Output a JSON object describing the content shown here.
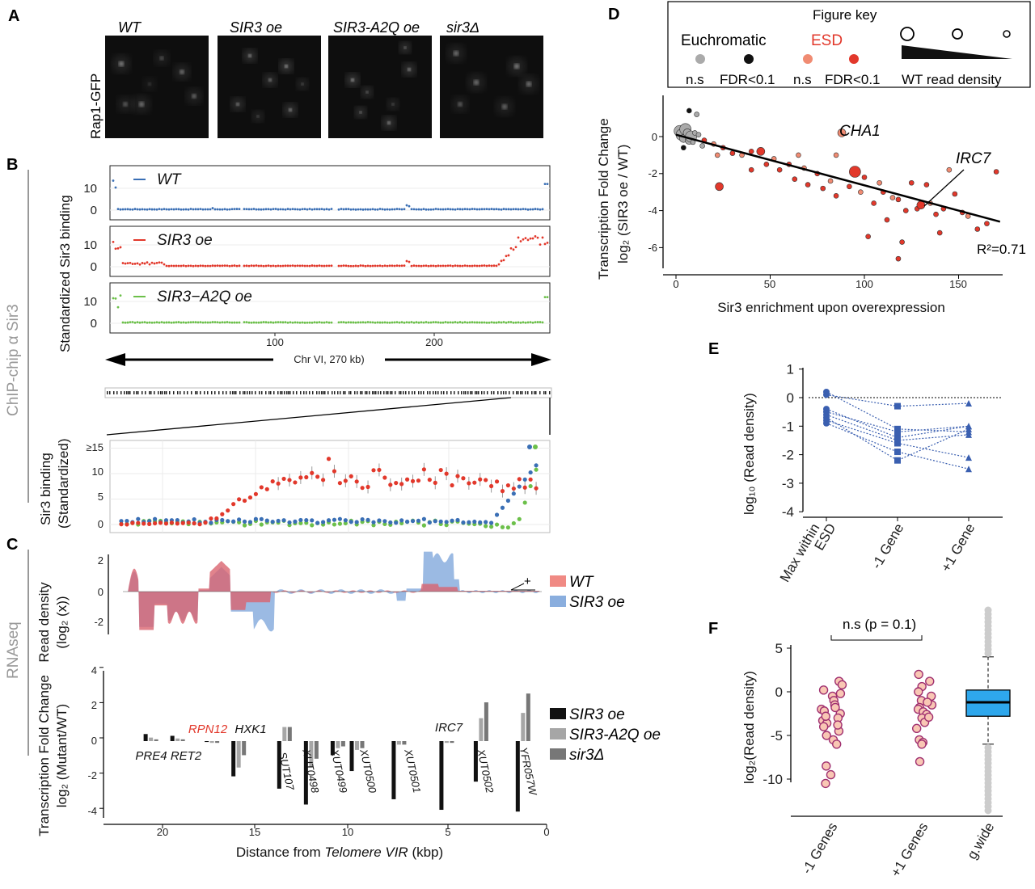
{
  "panels": {
    "A": {
      "label": "A",
      "ylabel": "Rap1-GFP",
      "strains": [
        "WT",
        "SIR3 oe",
        "SIR3-A2Q oe",
        "sir3Δ"
      ]
    },
    "B": {
      "label": "B",
      "side_label": "ChIP-chip  α Sir3",
      "ylabel": "Standardized Sir3 binding",
      "tracks": [
        "WT",
        "SIR3 oe",
        "SIR3−A2Q oe"
      ],
      "xticks": [
        "100",
        "200"
      ],
      "chr_label": "Chr VI, 270 kb)",
      "zoom_ylabel": [
        "Sir3 binding",
        "(Standardized)"
      ],
      "zoom_yticks": [
        "≥15",
        "10",
        "5",
        "0"
      ]
    },
    "C": {
      "label": "C",
      "side_label": "RNAseq",
      "density_ylabel": [
        "Read density",
        "(log₂ (x))"
      ],
      "density_yticks": [
        "2",
        "0",
        "-2"
      ],
      "density_legend": [
        "WT",
        "SIR3 oe"
      ],
      "plus_mark": "+",
      "fc_ylabel": [
        "Transcription Fold Change",
        "log₂ (Mutant/WT)"
      ],
      "fc_yticks": [
        "4",
        "2",
        "0",
        "-2",
        "-4"
      ],
      "fc_legend": [
        "SIR3 oe",
        "SIR3-A2Q oe",
        "sir3Δ"
      ],
      "xticks": [
        "20",
        "15",
        "10",
        "5",
        "0"
      ],
      "xlabel_prefix": "Distance from ",
      "xlabel_italic": "Telomere VIR",
      "xlabel_suffix": " (kbp)",
      "gene_labels": [
        "PRE4",
        "RET2",
        "RPN12",
        "HXK1",
        "SUT107",
        "XUT0498",
        "XUT0499",
        "XUT0500",
        "XUT0501",
        "IRC7",
        "XUT0502",
        "YFR057W"
      ]
    },
    "D": {
      "label": "D",
      "key_title": "Figure key",
      "key_euchromatic": "Euchromatic",
      "key_esd": "ESD",
      "key_ns": "n.s",
      "key_fdr": "FDR<0.1",
      "key_density": "WT read density",
      "ylabel_top": "Transcription Fold Change",
      "ylabel_bottom": "log₂ (SIR3 oe / WT)",
      "xlabel": "Sir3 enrichment upon overexpression",
      "xticks": [
        "0",
        "50",
        "100",
        "150"
      ],
      "yticks": [
        "0",
        "-2",
        "-4",
        "-6"
      ],
      "annot_cha1": "CHA1",
      "annot_irc7": "IRC7",
      "r2": "R²=0.71"
    },
    "E": {
      "label": "E",
      "ylabel": "log₁₀ (Read density)",
      "yticks": [
        "1",
        "0",
        "-1",
        "-2",
        "-3",
        "-4"
      ],
      "xticks": [
        "Max within ESD",
        "-1 Gene",
        "+1 Gene"
      ]
    },
    "F": {
      "label": "F",
      "ylabel": "log₂(Read density)",
      "yticks": [
        "5",
        "0",
        "-5",
        "-10"
      ],
      "xticks": [
        "-1 Genes",
        "+1 Genes",
        "g.wide"
      ],
      "sig_label": "n.s (p = 0.1)"
    }
  },
  "colors": {
    "wt_blue": "#3a6fb5",
    "oe_red": "#e2382b",
    "a2q_green": "#6cc04a",
    "esd_red": "#e2382b",
    "esd_light": "#f08b72",
    "euch_grey": "#aaaaaa",
    "density_wt": "#d9646f",
    "density_oe": "#8aaede",
    "box_blue": "#2ea7ec"
  },
  "chart_data": [
    {
      "panel": "C-bottom",
      "type": "bar",
      "xlabel": "Distance from Telomere VIR (kbp)",
      "ylabel": "Transcription Fold Change log2 (Mutant/WT)",
      "ylim": [
        -4,
        4
      ],
      "categories": [
        "PRE4",
        "RET2",
        "RPN12",
        "HXK1",
        "SUT107",
        "XUT0498",
        "XUT0499",
        "XUT0500",
        "XUT0501",
        "IRC7",
        "XUT0502",
        "YFR057W"
      ],
      "x": [
        20.8,
        19.4,
        17.6,
        16.2,
        13.8,
        12.4,
        11.0,
        10.0,
        7.8,
        5.3,
        3.5,
        1.3
      ],
      "series": [
        {
          "name": "SIR3 oe",
          "values": [
            0.4,
            0.3,
            -0.05,
            -2.0,
            -2.7,
            -3.6,
            -0.8,
            -1.7,
            -3.3,
            -3.9,
            -2.3,
            -4.0
          ]
        },
        {
          "name": "SIR3-A2Q oe",
          "values": [
            0.2,
            0.15,
            -0.1,
            -1.5,
            0.8,
            -1.5,
            -0.4,
            -0.5,
            -0.2,
            -0.1,
            1.3,
            1.6
          ]
        },
        {
          "name": "sir3Δ",
          "values": [
            0.1,
            0.1,
            -0.1,
            -0.8,
            0.8,
            -1.0,
            -0.3,
            -0.4,
            -0.2,
            -0.1,
            2.2,
            2.7
          ]
        }
      ]
    },
    {
      "panel": "D",
      "type": "scatter",
      "xlabel": "Sir3 enrichment upon overexpression",
      "ylabel": "Transcription Fold Change log2 (SIR3 oe / WT)",
      "xlim": [
        -5,
        180
      ],
      "ylim": [
        -7,
        2
      ],
      "fit_line": {
        "x": [
          0,
          172
        ],
        "y": [
          0.1,
          -4.6
        ]
      },
      "r2": 0.71,
      "points": [
        {
          "x": 2,
          "y": 0.3,
          "group": "euch_ns",
          "size": 3
        },
        {
          "x": 3,
          "y": 0.1,
          "group": "euch_ns",
          "size": 3
        },
        {
          "x": 4,
          "y": -0.1,
          "group": "euch_ns",
          "size": 2
        },
        {
          "x": 5,
          "y": 0.4,
          "group": "euch_ns",
          "size": 3
        },
        {
          "x": 6,
          "y": 0.2,
          "group": "euch_ns",
          "size": 2
        },
        {
          "x": 7,
          "y": -0.2,
          "group": "euch_ns",
          "size": 2
        },
        {
          "x": 8,
          "y": 0.0,
          "group": "euch_ns",
          "size": 3
        },
        {
          "x": 9,
          "y": -0.3,
          "group": "euch_ns",
          "size": 1
        },
        {
          "x": 10,
          "y": 0.2,
          "group": "euch_ns",
          "size": 1
        },
        {
          "x": 12,
          "y": 0.1,
          "group": "euch_ns",
          "size": 1
        },
        {
          "x": 14,
          "y": -0.5,
          "group": "euch_ns",
          "size": 1
        },
        {
          "x": 11,
          "y": 1.2,
          "group": "euch_ns",
          "size": 1
        },
        {
          "x": 4,
          "y": -0.6,
          "group": "euch_fdr",
          "size": 1
        },
        {
          "x": 7,
          "y": 1.4,
          "group": "euch_fdr",
          "size": 1
        },
        {
          "x": 15,
          "y": -0.2,
          "group": "esd_fdr",
          "size": 1
        },
        {
          "x": 20,
          "y": -0.4,
          "group": "esd_ns",
          "size": 1
        },
        {
          "x": 22,
          "y": -1.0,
          "group": "esd_ns",
          "size": 1
        },
        {
          "x": 25,
          "y": -0.6,
          "group": "esd_fdr",
          "size": 1
        },
        {
          "x": 23,
          "y": -2.7,
          "group": "esd_fdr",
          "size": 2
        },
        {
          "x": 30,
          "y": -0.9,
          "group": "esd_fdr",
          "size": 1
        },
        {
          "x": 35,
          "y": -1.0,
          "group": "esd_ns",
          "size": 1
        },
        {
          "x": 40,
          "y": -0.8,
          "group": "esd_fdr",
          "size": 1
        },
        {
          "x": 45,
          "y": -0.8,
          "group": "esd_fdr",
          "size": 2
        },
        {
          "x": 48,
          "y": -1.5,
          "group": "esd_fdr",
          "size": 1
        },
        {
          "x": 52,
          "y": -1.2,
          "group": "esd_ns",
          "size": 1
        },
        {
          "x": 55,
          "y": -1.8,
          "group": "esd_fdr",
          "size": 1
        },
        {
          "x": 60,
          "y": -1.5,
          "group": "esd_fdr",
          "size": 1
        },
        {
          "x": 63,
          "y": -2.3,
          "group": "esd_fdr",
          "size": 1
        },
        {
          "x": 68,
          "y": -1.7,
          "group": "esd_ns",
          "size": 1
        },
        {
          "x": 70,
          "y": -2.6,
          "group": "esd_fdr",
          "size": 1
        },
        {
          "x": 75,
          "y": -2.0,
          "group": "esd_fdr",
          "size": 1
        },
        {
          "x": 78,
          "y": -2.8,
          "group": "esd_fdr",
          "size": 1
        },
        {
          "x": 82,
          "y": -2.4,
          "group": "esd_ns",
          "size": 1
        },
        {
          "x": 85,
          "y": -3.2,
          "group": "esd_fdr",
          "size": 1
        },
        {
          "x": 88,
          "y": 0.2,
          "group": "esd_ns",
          "size": 2
        },
        {
          "x": 92,
          "y": -2.7,
          "group": "esd_fdr",
          "size": 1
        },
        {
          "x": 95,
          "y": -1.9,
          "group": "esd_fdr",
          "size": 3
        },
        {
          "x": 98,
          "y": -3.0,
          "group": "esd_ns",
          "size": 1
        },
        {
          "x": 100,
          "y": -2.2,
          "group": "esd_fdr",
          "size": 1
        },
        {
          "x": 105,
          "y": -3.6,
          "group": "esd_fdr",
          "size": 1
        },
        {
          "x": 108,
          "y": -2.5,
          "group": "esd_ns",
          "size": 1
        },
        {
          "x": 110,
          "y": -3.0,
          "group": "esd_fdr",
          "size": 1
        },
        {
          "x": 112,
          "y": -4.5,
          "group": "esd_fdr",
          "size": 1
        },
        {
          "x": 115,
          "y": -3.3,
          "group": "esd_ns",
          "size": 1
        },
        {
          "x": 118,
          "y": -3.4,
          "group": "esd_fdr",
          "size": 1
        },
        {
          "x": 120,
          "y": -5.7,
          "group": "esd_fdr",
          "size": 1
        },
        {
          "x": 122,
          "y": -4.0,
          "group": "esd_fdr",
          "size": 1
        },
        {
          "x": 125,
          "y": -2.5,
          "group": "esd_fdr",
          "size": 1
        },
        {
          "x": 128,
          "y": -3.9,
          "group": "esd_fdr",
          "size": 1
        },
        {
          "x": 130,
          "y": -3.7,
          "group": "esd_fdr",
          "size": 2
        },
        {
          "x": 133,
          "y": -2.6,
          "group": "esd_fdr",
          "size": 1
        },
        {
          "x": 135,
          "y": -3.6,
          "group": "esd_ns",
          "size": 1
        },
        {
          "x": 138,
          "y": -4.2,
          "group": "esd_fdr",
          "size": 1
        },
        {
          "x": 142,
          "y": -3.9,
          "group": "esd_fdr",
          "size": 1
        },
        {
          "x": 148,
          "y": -3.1,
          "group": "esd_fdr",
          "size": 1
        },
        {
          "x": 152,
          "y": -4.1,
          "group": "esd_fdr",
          "size": 1
        },
        {
          "x": 155,
          "y": -4.3,
          "group": "esd_ns",
          "size": 1
        },
        {
          "x": 160,
          "y": -5.0,
          "group": "esd_fdr",
          "size": 1
        },
        {
          "x": 165,
          "y": -4.7,
          "group": "esd_fdr",
          "size": 1
        },
        {
          "x": 170,
          "y": -1.9,
          "group": "esd_fdr",
          "size": 1
        },
        {
          "x": 140,
          "y": -5.2,
          "group": "esd_fdr",
          "size": 1
        },
        {
          "x": 118,
          "y": -6.6,
          "group": "esd_fdr",
          "size": 1
        },
        {
          "x": 102,
          "y": -5.4,
          "group": "esd_fdr",
          "size": 1
        },
        {
          "x": 85,
          "y": -1.0,
          "group": "esd_ns",
          "size": 1
        },
        {
          "x": 65,
          "y": -1.0,
          "group": "esd_ns",
          "size": 1
        },
        {
          "x": 40,
          "y": -1.8,
          "group": "esd_fdr",
          "size": 1
        },
        {
          "x": 145,
          "y": -1.8,
          "group": "esd_ns",
          "size": 1
        }
      ]
    },
    {
      "panel": "E",
      "type": "line",
      "ylabel": "log10 (Read density)",
      "ylim": [
        -4,
        1
      ],
      "categories": [
        "Max within ESD",
        "-1 Gene",
        "+1 Gene"
      ],
      "series": [
        {
          "values": [
            0.2,
            -1.1,
            -1.2
          ]
        },
        {
          "values": [
            0.1,
            -0.3,
            -0.2
          ]
        },
        {
          "values": [
            -0.4,
            -1.4,
            -1.0
          ]
        },
        {
          "values": [
            -0.6,
            -1.5,
            -1.3
          ]
        },
        {
          "values": [
            -0.7,
            -2.2,
            -1.1
          ]
        },
        {
          "values": [
            -0.8,
            -1.6,
            -2.1
          ]
        },
        {
          "values": [
            -0.9,
            -1.9,
            -2.5
          ]
        },
        {
          "values": [
            -0.5,
            -1.2,
            -1.0
          ]
        }
      ]
    },
    {
      "panel": "F",
      "type": "scatter",
      "ylabel": "log2(Read density)",
      "categories": [
        "-1 Genes",
        "+1 Genes",
        "g.wide"
      ],
      "ylim": [
        -12,
        6
      ],
      "groups": [
        {
          "name": "-1 Genes",
          "values": [
            1.2,
            0.8,
            0.2,
            -0.5,
            -1.0,
            -1.5,
            -2.0,
            -2.2,
            -2.5,
            -3.0,
            -3.3,
            -3.6,
            -4.0,
            -4.5,
            -5.0,
            -5.5,
            -6.0,
            -8.5,
            -9.5,
            -10.5,
            -1.8,
            -2.8,
            -3.8,
            -0.2
          ]
        },
        {
          "name": "+1 Genes",
          "values": [
            2.0,
            1.2,
            0.6,
            0.0,
            -0.5,
            -1.0,
            -1.5,
            -1.8,
            -2.0,
            -2.3,
            -2.6,
            -3.0,
            -3.5,
            -4.2,
            -5.5,
            -5.8,
            -6.0,
            -8.0,
            -1.2,
            -2.9
          ]
        }
      ],
      "box": {
        "name": "g.wide",
        "q1": -2.8,
        "median": -1.2,
        "q3": 0.2,
        "whisker_low": -6.0,
        "whisker_high": 4.0,
        "out_low": -12.0,
        "out_high": 6.5
      }
    }
  ]
}
